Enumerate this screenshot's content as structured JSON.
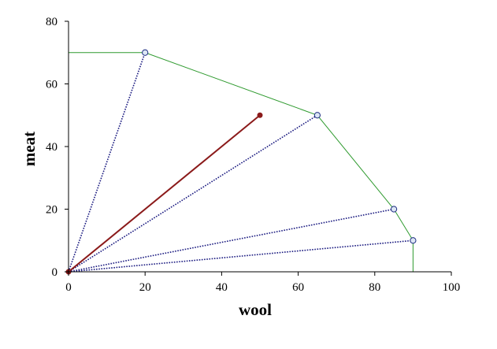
{
  "chart_data": {
    "type": "line",
    "title": "",
    "xlabel": "wool",
    "ylabel": "meat",
    "xlim": [
      0,
      100
    ],
    "ylim": [
      0,
      80
    ],
    "xticks": [
      0,
      20,
      40,
      60,
      80,
      100
    ],
    "yticks": [
      0,
      20,
      40,
      60,
      80
    ],
    "grid": false,
    "legend": "none",
    "frontier": {
      "color": "#2e9a2e",
      "points": [
        [
          0,
          70
        ],
        [
          20,
          70
        ],
        [
          65,
          50
        ],
        [
          85,
          20
        ],
        [
          90,
          10
        ],
        [
          90,
          0
        ]
      ]
    },
    "vertices": [
      [
        20,
        70
      ],
      [
        65,
        50
      ],
      [
        85,
        20
      ],
      [
        90,
        10
      ]
    ],
    "rays": [
      {
        "to": [
          20,
          70
        ],
        "color": "#1a1a80",
        "style": "dotted"
      },
      {
        "to": [
          65,
          50
        ],
        "color": "#1a1a80",
        "style": "dotted"
      },
      {
        "to": [
          85,
          20
        ],
        "color": "#1a1a80",
        "style": "dotted"
      },
      {
        "to": [
          90,
          10
        ],
        "color": "#1a1a80",
        "style": "dotted"
      }
    ],
    "solution": {
      "from": [
        0,
        0
      ],
      "to": [
        50,
        50
      ],
      "color": "#8b1a1a"
    }
  }
}
